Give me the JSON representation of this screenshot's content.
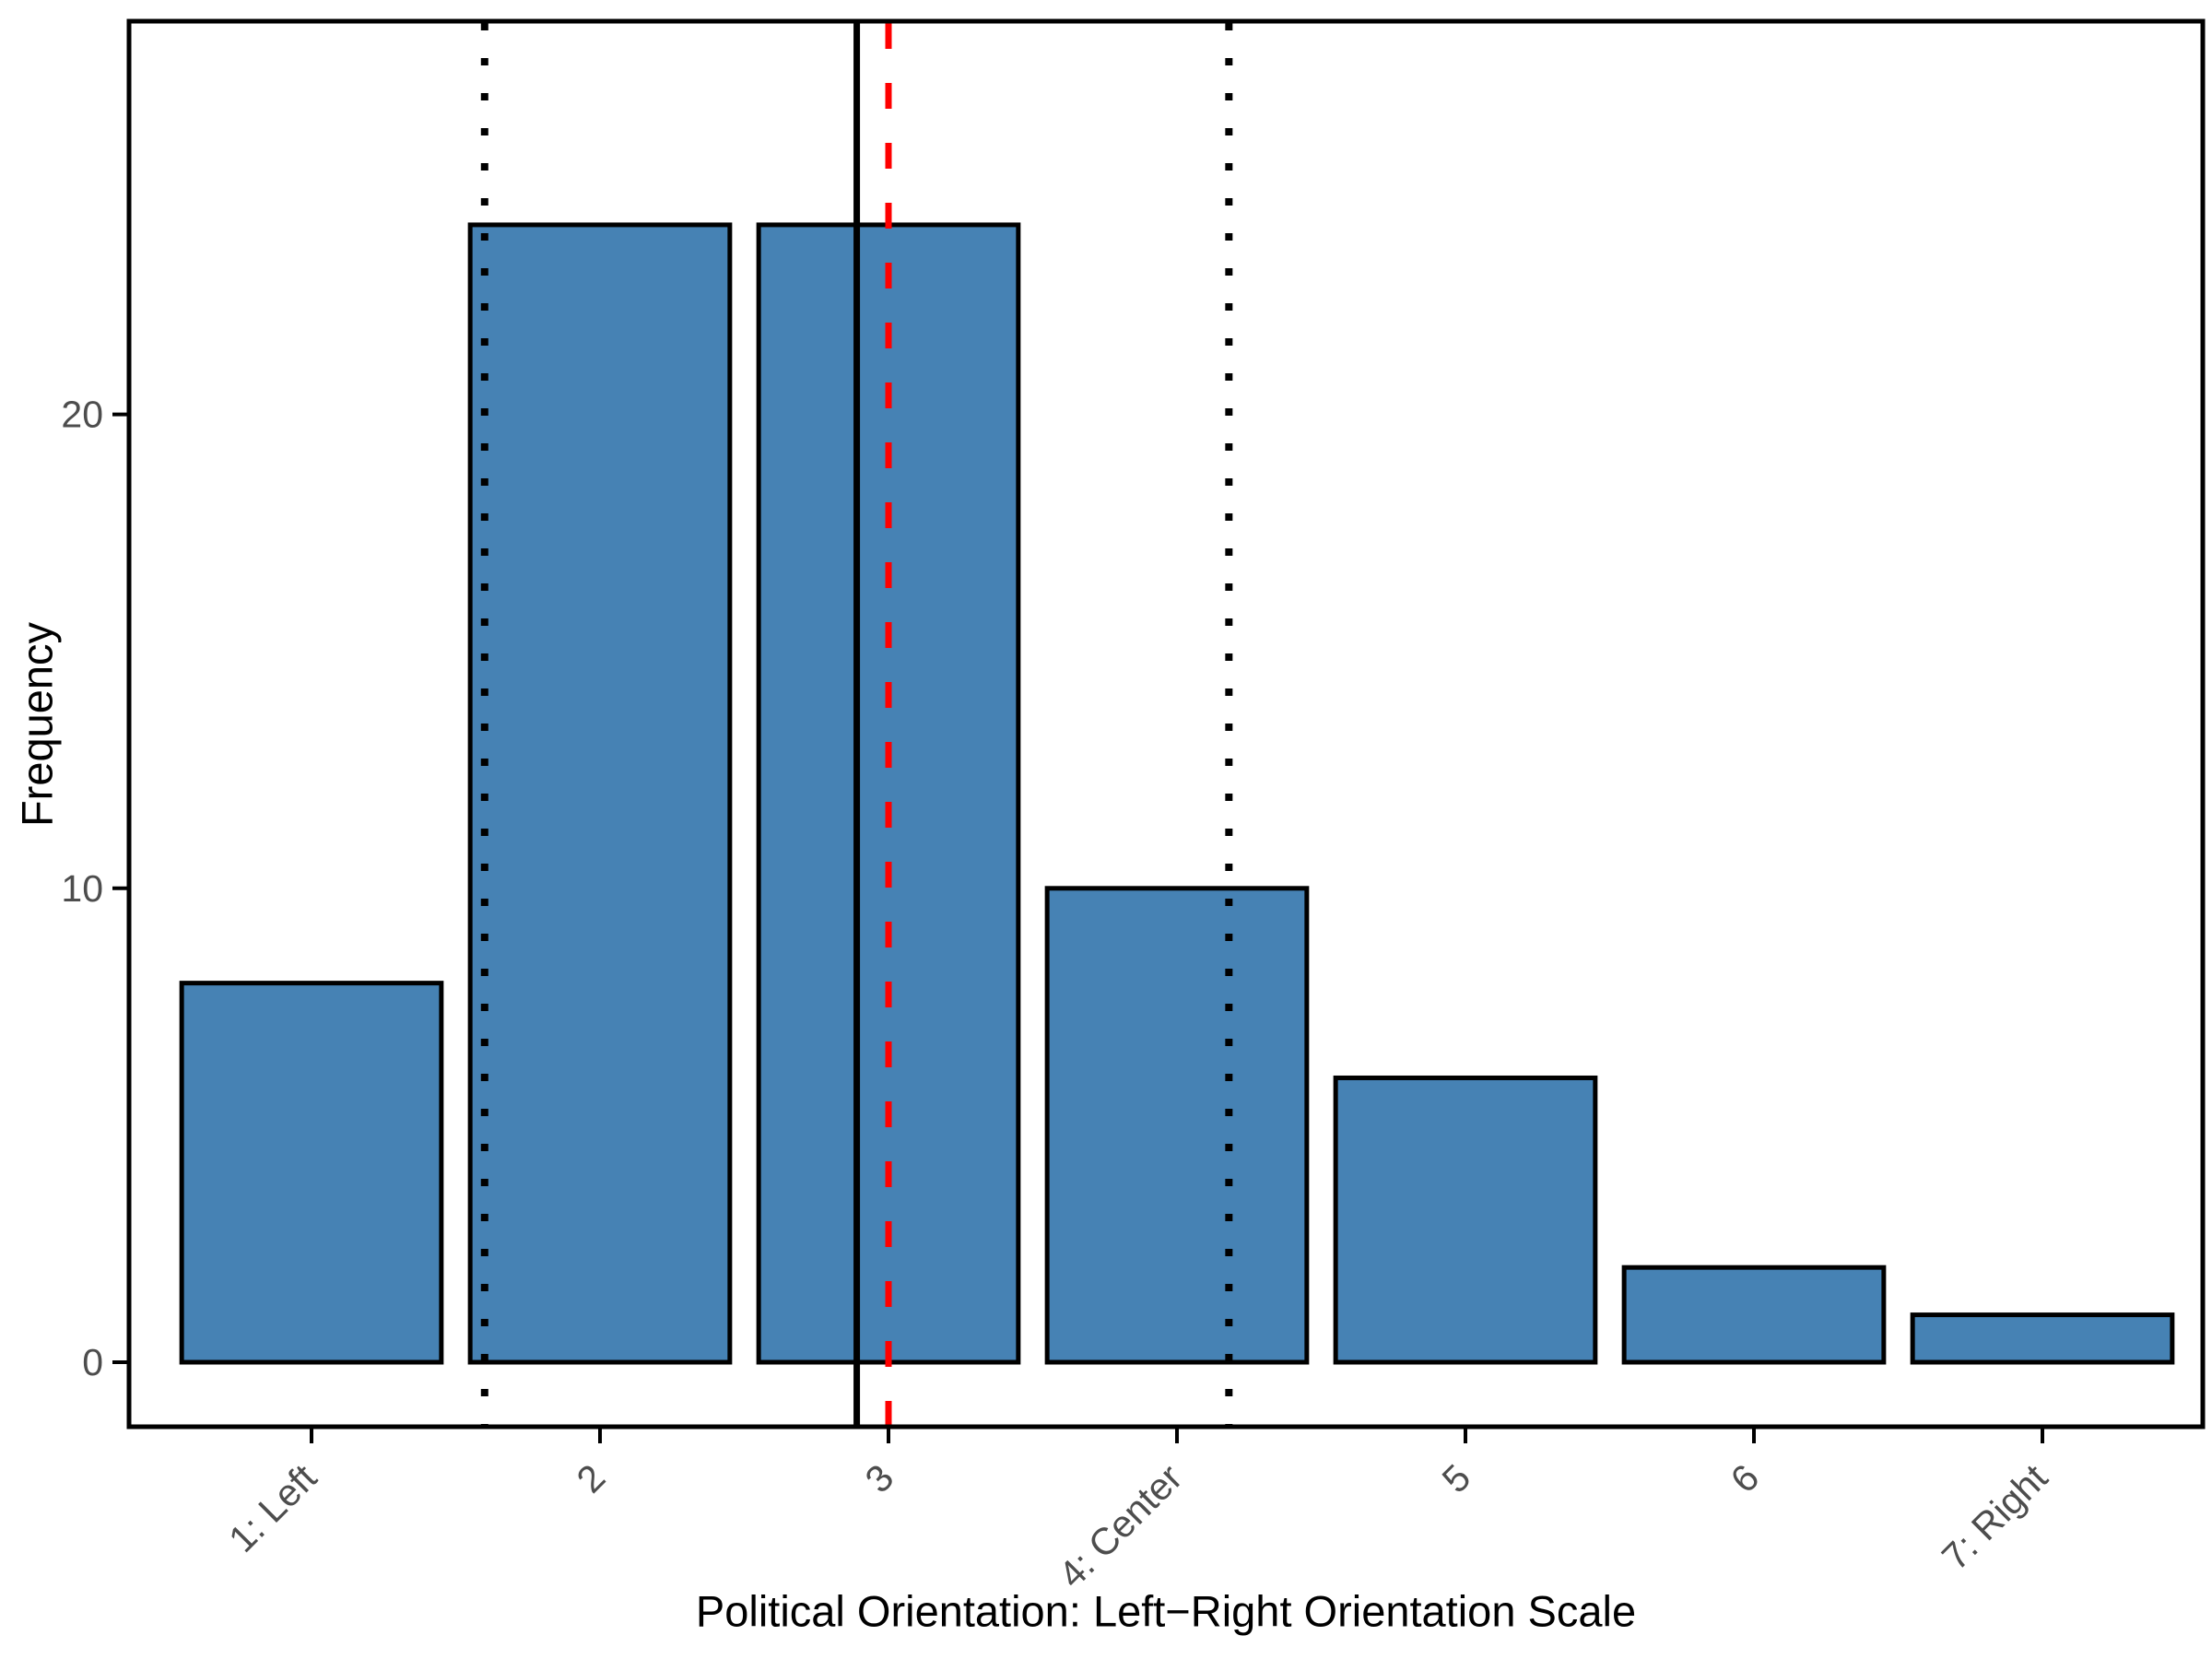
{
  "chart_data": {
    "type": "bar",
    "title": "",
    "xlabel": "Political Orientation: Left−Right Orientation Scale",
    "ylabel": "Frequency",
    "categories": [
      "1: Left",
      "2",
      "3",
      "4: Center",
      "5",
      "6",
      "7: Right"
    ],
    "category_x": [
      1,
      2,
      3,
      4,
      5,
      6,
      7
    ],
    "values": [
      8,
      24,
      24,
      10,
      6,
      2,
      1
    ],
    "yticks": [
      0,
      10,
      20
    ],
    "ylim": [
      0,
      24
    ],
    "bar_width": 0.9,
    "grid": "off",
    "legend": "none",
    "bar_fill": "#4682B4",
    "bar_stroke": "#000000",
    "tick_label_color": "#4d4d4d",
    "axis_title_color": "#000000",
    "panel_border_color": "#000000",
    "reference_lines": [
      {
        "name": "mean-line",
        "x": 2.89,
        "style": "solid",
        "color": "#000000"
      },
      {
        "name": "median-line",
        "x": 3.0,
        "style": "dashed",
        "color": "#ff0000"
      },
      {
        "name": "mean-minus-sd-line",
        "x": 1.6,
        "style": "dotted",
        "color": "#000000"
      },
      {
        "name": "mean-plus-sd-line",
        "x": 4.18,
        "style": "dotted",
        "color": "#000000"
      }
    ]
  }
}
